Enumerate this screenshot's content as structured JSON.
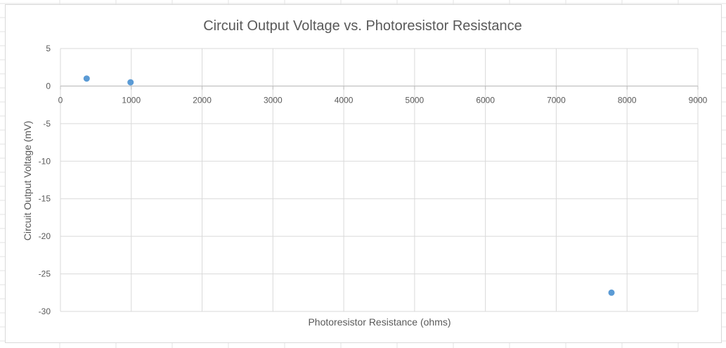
{
  "chart_data": {
    "type": "scatter",
    "title": "Circuit Output Voltage vs. Photoresistor Resistance",
    "xlabel": "Photoresistor Resistance (ohms)",
    "ylabel": "Circuit Output Voltage (mV)",
    "xlim": [
      0,
      9000
    ],
    "ylim": [
      -30,
      5
    ],
    "x_ticks": [
      0,
      1000,
      2000,
      3000,
      4000,
      5000,
      6000,
      7000,
      8000,
      9000
    ],
    "y_ticks": [
      5,
      0,
      -5,
      -10,
      -15,
      -20,
      -25,
      -30
    ],
    "x_tick_labels": [
      "0",
      "1000",
      "2000",
      "3000",
      "4000",
      "5000",
      "6000",
      "7000",
      "8000",
      "9000"
    ],
    "y_tick_labels": [
      "5",
      "0",
      "-5",
      "-10",
      "-15",
      "-20",
      "-25",
      "-30"
    ],
    "grid": true,
    "legend": "none",
    "series": [
      {
        "color": "#5b9bd5",
        "points": [
          {
            "x": 370,
            "y": 1.0
          },
          {
            "x": 990,
            "y": 0.5
          },
          {
            "x": 7780,
            "y": -27.5
          }
        ]
      }
    ]
  }
}
